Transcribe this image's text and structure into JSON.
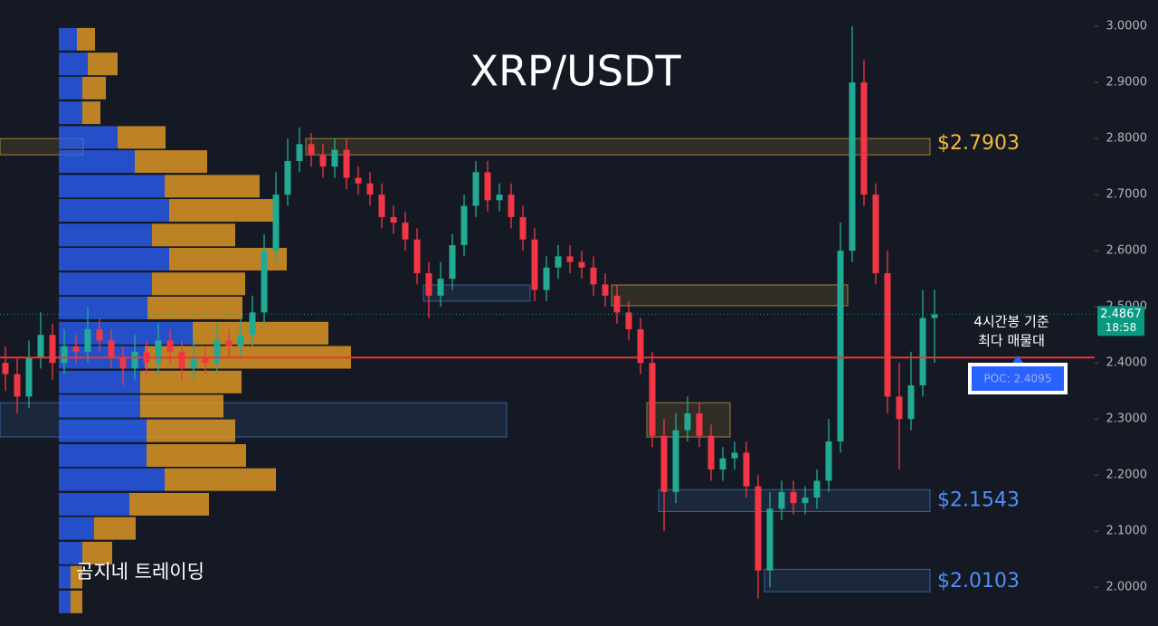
{
  "chart_data": {
    "type": "candlestick",
    "title": "XRP/USDT",
    "watermark": "곰지네 트레이딩",
    "up_color": "#22ab94",
    "down_color": "#f23645",
    "ylim": [
      1.931,
      3.047
    ],
    "yticks": [
      {
        "value": 2.0,
        "label": "2.0000"
      },
      {
        "value": 2.1,
        "label": "2.1000"
      },
      {
        "value": 2.2,
        "label": "2.2000"
      },
      {
        "value": 2.3,
        "label": "2.3000"
      },
      {
        "value": 2.4,
        "label": "2.4000"
      },
      {
        "value": 2.5,
        "label": "2.5000"
      },
      {
        "value": 2.6,
        "label": "2.6000"
      },
      {
        "value": 2.7,
        "label": "2.7000"
      },
      {
        "value": 2.8,
        "label": "2.8000"
      },
      {
        "value": 2.9,
        "label": "2.9000"
      },
      {
        "value": 3.0,
        "label": "3.0000"
      }
    ],
    "open": [
      2.4,
      2.38,
      2.34,
      2.41,
      2.45,
      2.4,
      2.43,
      2.42,
      2.46,
      2.44,
      2.41,
      2.39,
      2.42,
      2.4,
      2.44,
      2.42,
      2.39,
      2.41,
      2.4,
      2.44,
      2.43,
      2.45,
      2.49,
      2.6,
      2.7,
      2.76,
      2.79,
      2.77,
      2.75,
      2.78,
      2.73,
      2.72,
      2.7,
      2.66,
      2.65,
      2.62,
      2.56,
      2.52,
      2.55,
      2.61,
      2.68,
      2.74,
      2.69,
      2.7,
      2.66,
      2.62,
      2.53,
      2.57,
      2.59,
      2.58,
      2.57,
      2.54,
      2.52,
      2.49,
      2.46,
      2.4,
      2.27,
      2.17,
      2.28,
      2.31,
      2.27,
      2.21,
      2.23,
      2.24,
      2.18,
      2.03,
      2.14,
      2.17,
      2.15,
      2.16,
      2.19,
      2.26,
      2.6,
      2.9,
      2.7,
      2.56,
      2.34,
      2.3,
      2.36,
      2.48
    ],
    "high": [
      2.43,
      2.41,
      2.44,
      2.49,
      2.47,
      2.46,
      2.45,
      2.5,
      2.48,
      2.46,
      2.43,
      2.45,
      2.44,
      2.47,
      2.46,
      2.44,
      2.44,
      2.43,
      2.47,
      2.46,
      2.48,
      2.52,
      2.63,
      2.74,
      2.8,
      2.82,
      2.81,
      2.79,
      2.8,
      2.8,
      2.75,
      2.74,
      2.72,
      2.68,
      2.67,
      2.64,
      2.58,
      2.58,
      2.63,
      2.7,
      2.76,
      2.76,
      2.72,
      2.72,
      2.68,
      2.64,
      2.59,
      2.61,
      2.61,
      2.6,
      2.59,
      2.56,
      2.54,
      2.51,
      2.48,
      2.42,
      2.3,
      2.31,
      2.34,
      2.33,
      2.29,
      2.25,
      2.26,
      2.26,
      2.2,
      2.17,
      2.19,
      2.19,
      2.18,
      2.21,
      2.3,
      2.65,
      3.0,
      2.94,
      2.72,
      2.6,
      2.4,
      2.42,
      2.53,
      2.53
    ],
    "low": [
      2.35,
      2.31,
      2.32,
      2.39,
      2.37,
      2.38,
      2.4,
      2.4,
      2.42,
      2.39,
      2.36,
      2.37,
      2.38,
      2.38,
      2.4,
      2.37,
      2.37,
      2.38,
      2.38,
      2.41,
      2.41,
      2.43,
      2.47,
      2.58,
      2.68,
      2.74,
      2.75,
      2.73,
      2.73,
      2.71,
      2.7,
      2.68,
      2.64,
      2.63,
      2.6,
      2.54,
      2.48,
      2.5,
      2.53,
      2.59,
      2.66,
      2.67,
      2.67,
      2.64,
      2.6,
      2.51,
      2.51,
      2.55,
      2.56,
      2.55,
      2.52,
      2.5,
      2.47,
      2.44,
      2.38,
      2.25,
      2.1,
      2.15,
      2.26,
      2.25,
      2.19,
      2.19,
      2.21,
      2.16,
      1.98,
      2.0,
      2.12,
      2.13,
      2.13,
      2.14,
      2.17,
      2.24,
      2.58,
      2.68,
      2.54,
      2.31,
      2.21,
      2.28,
      2.34,
      2.4
    ],
    "close": [
      2.38,
      2.34,
      2.41,
      2.45,
      2.4,
      2.43,
      2.42,
      2.46,
      2.44,
      2.41,
      2.39,
      2.42,
      2.4,
      2.44,
      2.42,
      2.39,
      2.41,
      2.4,
      2.44,
      2.43,
      2.45,
      2.49,
      2.6,
      2.7,
      2.76,
      2.79,
      2.77,
      2.75,
      2.78,
      2.73,
      2.72,
      2.7,
      2.66,
      2.65,
      2.62,
      2.56,
      2.52,
      2.55,
      2.61,
      2.68,
      2.74,
      2.69,
      2.7,
      2.66,
      2.62,
      2.53,
      2.57,
      2.59,
      2.58,
      2.57,
      2.54,
      2.52,
      2.49,
      2.46,
      2.4,
      2.27,
      2.17,
      2.28,
      2.31,
      2.27,
      2.21,
      2.23,
      2.24,
      2.18,
      2.03,
      2.14,
      2.17,
      2.15,
      2.16,
      2.19,
      2.26,
      2.6,
      2.9,
      2.7,
      2.56,
      2.34,
      2.3,
      2.36,
      2.48,
      2.4867
    ],
    "volume_profile": {
      "buy_color": "#2962ff",
      "sell_color": "#f5a623",
      "price_levels": [
        2.977,
        2.933,
        2.89,
        2.846,
        2.802,
        2.759,
        2.715,
        2.672,
        2.628,
        2.585,
        2.541,
        2.498,
        2.453,
        2.41,
        2.366,
        2.323,
        2.279,
        2.235,
        2.192,
        2.148,
        2.105,
        2.061,
        2.018,
        1.974
      ],
      "buy": [
        20,
        32,
        26,
        26,
        65,
        84,
        117,
        122,
        103,
        122,
        103,
        98,
        148,
        95,
        90,
        90,
        97,
        97,
        117,
        78,
        39,
        26,
        13,
        13
      ],
      "sell": [
        20,
        33,
        26,
        20,
        53,
        80,
        105,
        115,
        92,
        130,
        103,
        105,
        150,
        228,
        112,
        92,
        98,
        110,
        123,
        88,
        46,
        33,
        13,
        13
      ]
    },
    "zones": [
      {
        "from": 0,
        "to": 7,
        "low": 2.771,
        "high": 2.8,
        "color": "#f5c242"
      },
      {
        "from": 26,
        "to": 79,
        "low": 2.771,
        "high": 2.8,
        "color": "#f5c242"
      },
      {
        "from": 36,
        "to": 45,
        "low": 2.51,
        "high": 2.539,
        "color": "#4a90e2"
      },
      {
        "from": 52,
        "to": 72,
        "low": 2.502,
        "high": 2.539,
        "color": "#f5c242"
      },
      {
        "from": 0,
        "to": 43,
        "low": 2.268,
        "high": 2.329,
        "color": "#4a90e2"
      },
      {
        "from": 55,
        "to": 62,
        "low": 2.268,
        "high": 2.329,
        "color": "#f5c242"
      },
      {
        "from": 56,
        "to": 79,
        "low": 2.135,
        "high": 2.174,
        "color": "#4a90e2"
      },
      {
        "from": 65,
        "to": 79,
        "low": 1.992,
        "high": 2.032,
        "color": "#4a90e2"
      }
    ],
    "levels": [
      {
        "value": 2.7903,
        "label": "$2.7903",
        "color": "#f3b93a"
      },
      {
        "value": 2.1543,
        "label": "$2.1543",
        "color": "#4f8ef7"
      },
      {
        "value": 2.0103,
        "label": "$2.0103",
        "color": "#4f8ef7"
      }
    ],
    "poc": {
      "value": 2.4095,
      "label": "POC: 2.4095",
      "color": "#e53935"
    },
    "annotation": [
      "4시간봉 기준",
      "최다 매물대"
    ],
    "last_price": {
      "value": 2.4867,
      "label": "2.4867",
      "time": "18:58",
      "color": "#089981"
    }
  }
}
